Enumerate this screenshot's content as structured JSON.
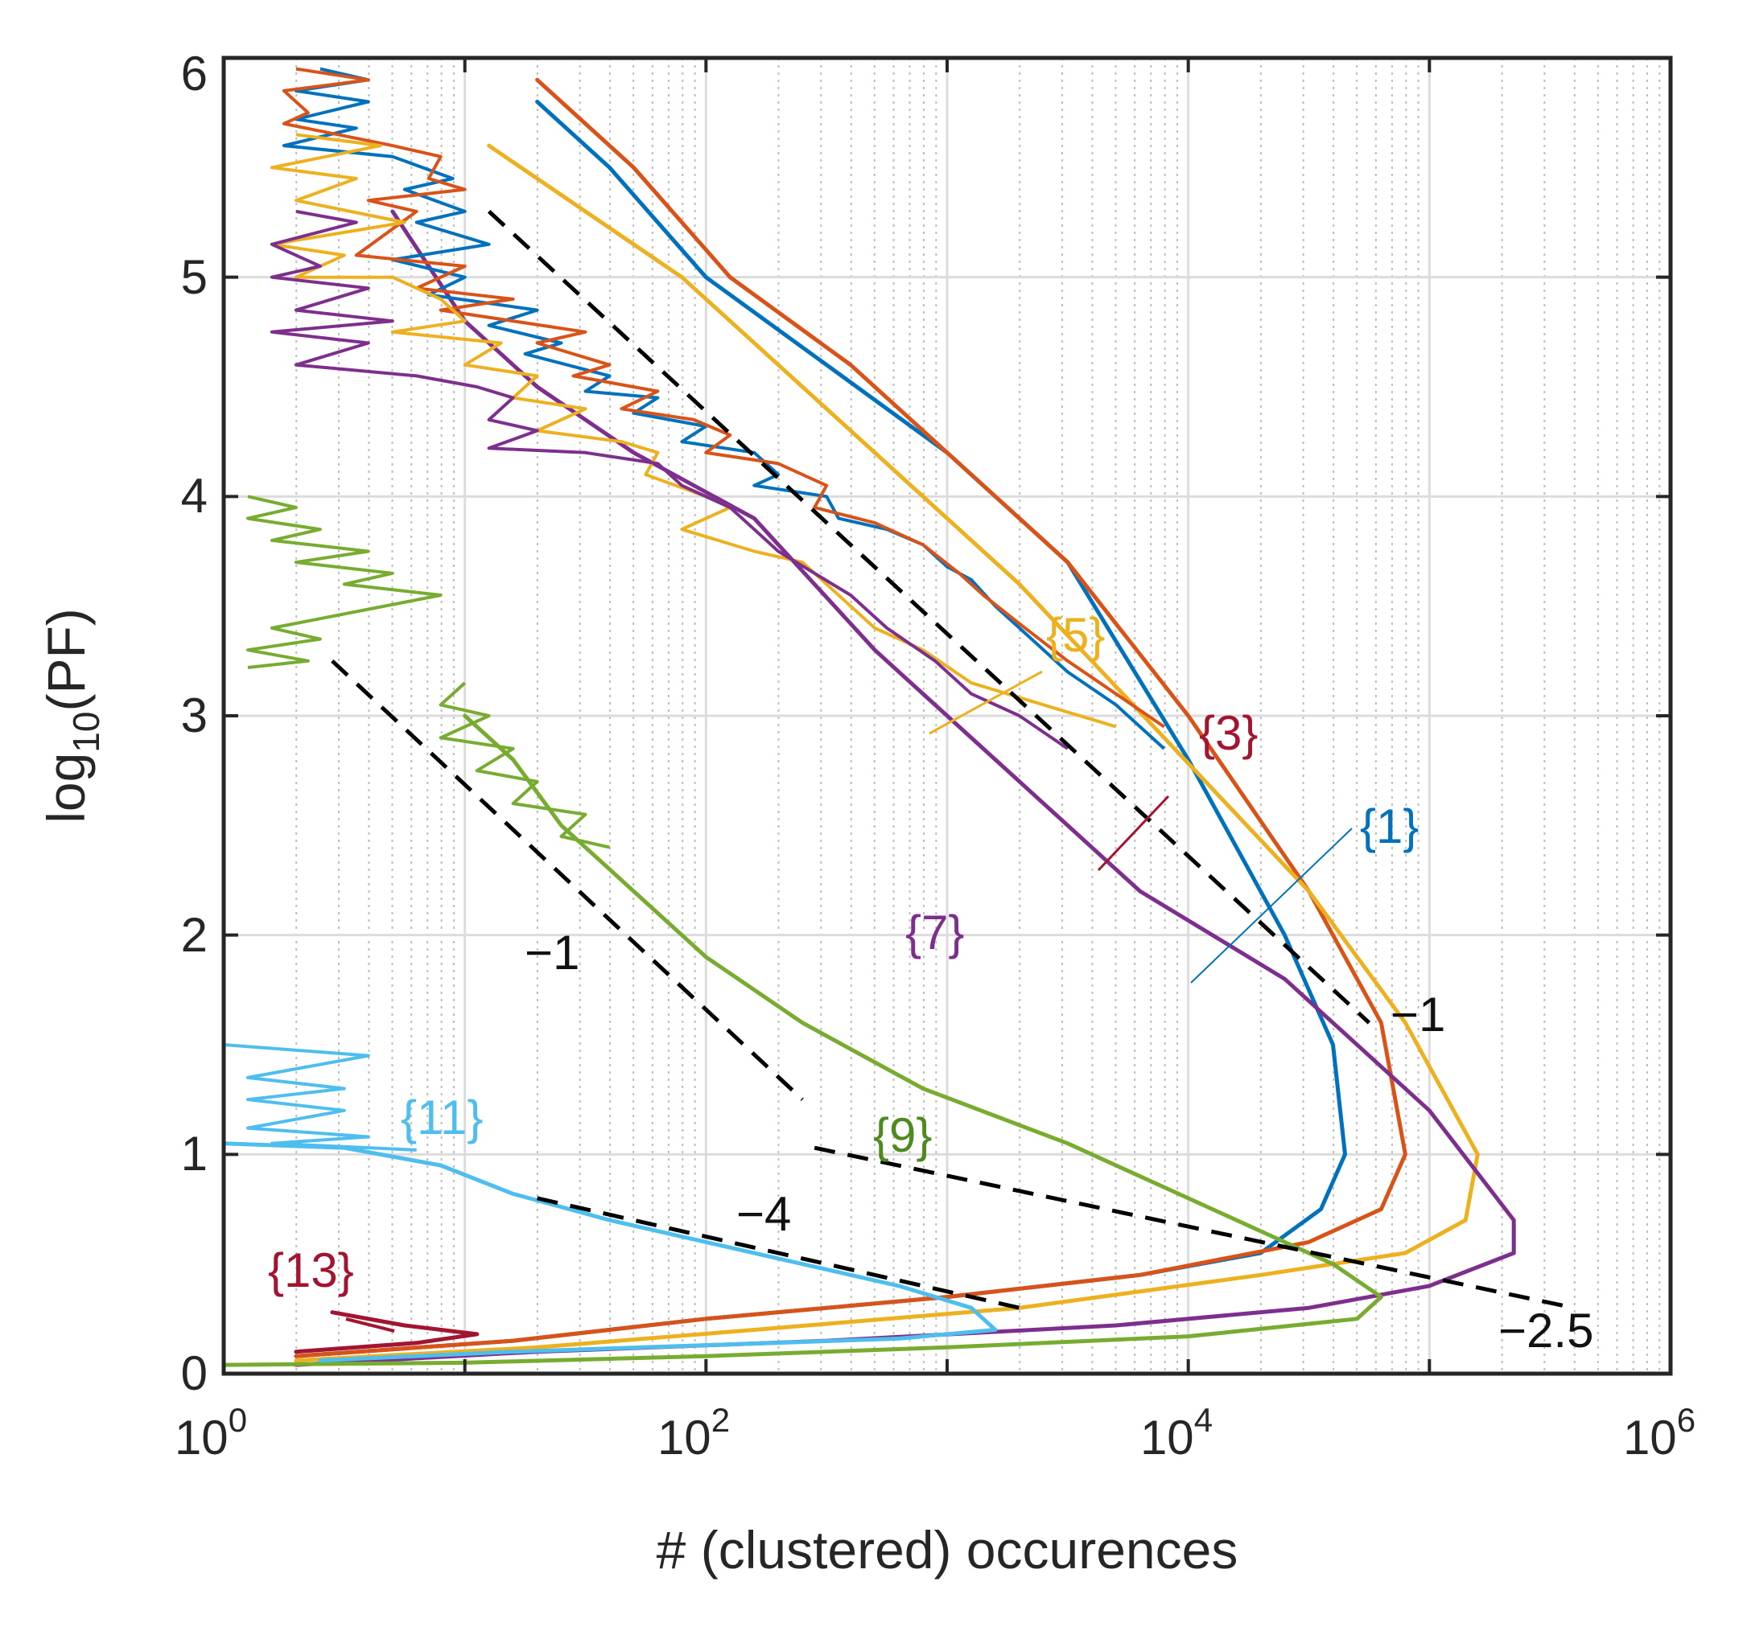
{
  "chart_data": {
    "type": "line",
    "title": "",
    "xlabel": "# (clustered) occurences",
    "ylabel_main": "log",
    "ylabel_sub": "10",
    "ylabel_tail": "(PF)",
    "x_scale": "log",
    "xlim_exp": [
      0,
      6
    ],
    "ylim": [
      0,
      6
    ],
    "x_ticks": [
      {
        "base": "10",
        "exp": "0"
      },
      {
        "base": "10",
        "exp": "2"
      },
      {
        "base": "10",
        "exp": "4"
      },
      {
        "base": "10",
        "exp": "6"
      }
    ],
    "y_ticks": [
      "0",
      "1",
      "2",
      "3",
      "4",
      "5",
      "6"
    ],
    "grid": true,
    "series": [
      {
        "name": "{1}",
        "color": "#0072BD",
        "points": [
          [
            1.3,
            5.8
          ],
          [
            1.6,
            5.5
          ],
          [
            2.0,
            5.0
          ],
          [
            2.5,
            4.6
          ],
          [
            3.0,
            4.2
          ],
          [
            3.5,
            3.7
          ],
          [
            4.0,
            2.8
          ],
          [
            4.4,
            2.0
          ],
          [
            4.6,
            1.5
          ],
          [
            4.65,
            1.0
          ],
          [
            4.55,
            0.75
          ],
          [
            4.3,
            0.55
          ],
          [
            3.8,
            0.45
          ],
          [
            3.0,
            0.35
          ],
          [
            2.0,
            0.25
          ],
          [
            1.2,
            0.15
          ],
          [
            0.3,
            0.08
          ]
        ]
      },
      {
        "name": "{3}",
        "color": "#D95319",
        "points": [
          [
            1.3,
            5.9
          ],
          [
            1.7,
            5.5
          ],
          [
            2.1,
            5.0
          ],
          [
            2.6,
            4.6
          ],
          [
            3.0,
            4.2
          ],
          [
            3.5,
            3.7
          ],
          [
            4.0,
            3.0
          ],
          [
            4.5,
            2.2
          ],
          [
            4.8,
            1.6
          ],
          [
            4.9,
            1.0
          ],
          [
            4.8,
            0.75
          ],
          [
            4.5,
            0.6
          ],
          [
            3.8,
            0.45
          ],
          [
            3.0,
            0.35
          ],
          [
            2.0,
            0.25
          ],
          [
            1.2,
            0.15
          ],
          [
            0.3,
            0.08
          ]
        ]
      },
      {
        "name": "{5}",
        "color": "#EDB120",
        "points": [
          [
            1.1,
            5.6
          ],
          [
            1.5,
            5.3
          ],
          [
            1.9,
            5.0
          ],
          [
            2.3,
            4.6
          ],
          [
            2.8,
            4.1
          ],
          [
            3.3,
            3.6
          ],
          [
            3.9,
            2.9
          ],
          [
            4.5,
            2.2
          ],
          [
            4.9,
            1.6
          ],
          [
            5.2,
            1.0
          ],
          [
            5.15,
            0.7
          ],
          [
            4.9,
            0.55
          ],
          [
            4.3,
            0.45
          ],
          [
            3.3,
            0.3
          ],
          [
            2.2,
            0.2
          ],
          [
            1.3,
            0.12
          ],
          [
            0.3,
            0.06
          ]
        ]
      },
      {
        "name": "{7}",
        "color": "#7E2F8E",
        "points": [
          [
            0.7,
            5.3
          ],
          [
            1.0,
            4.8
          ],
          [
            1.3,
            4.5
          ],
          [
            1.7,
            4.2
          ],
          [
            2.2,
            3.9
          ],
          [
            2.7,
            3.3
          ],
          [
            3.2,
            2.8
          ],
          [
            3.8,
            2.2
          ],
          [
            4.4,
            1.8
          ],
          [
            5.0,
            1.2
          ],
          [
            5.35,
            0.7
          ],
          [
            5.35,
            0.55
          ],
          [
            5.0,
            0.4
          ],
          [
            4.5,
            0.3
          ],
          [
            3.7,
            0.22
          ],
          [
            2.5,
            0.15
          ],
          [
            1.3,
            0.1
          ],
          [
            0.3,
            0.04
          ]
        ]
      },
      {
        "name": "{9}",
        "color": "#77AC30",
        "points": [
          [
            1.0,
            3.0
          ],
          [
            1.2,
            2.8
          ],
          [
            1.4,
            2.5
          ],
          [
            1.7,
            2.2
          ],
          [
            2.0,
            1.9
          ],
          [
            2.4,
            1.6
          ],
          [
            2.9,
            1.3
          ],
          [
            3.5,
            1.05
          ],
          [
            4.1,
            0.75
          ],
          [
            4.6,
            0.5
          ],
          [
            4.8,
            0.35
          ],
          [
            4.7,
            0.25
          ],
          [
            4.0,
            0.17
          ],
          [
            3.0,
            0.12
          ],
          [
            2.0,
            0.08
          ],
          [
            1.0,
            0.05
          ],
          [
            0.0,
            0.04
          ]
        ]
      },
      {
        "name": "{11}",
        "color": "#4DBEEE",
        "points": [
          [
            0.0,
            1.05
          ],
          [
            0.5,
            1.03
          ],
          [
            0.9,
            0.95
          ],
          [
            1.2,
            0.82
          ],
          [
            1.6,
            0.7
          ],
          [
            2.0,
            0.6
          ],
          [
            2.4,
            0.5
          ],
          [
            2.8,
            0.4
          ],
          [
            3.1,
            0.3
          ],
          [
            3.2,
            0.2
          ],
          [
            2.8,
            0.16
          ],
          [
            2.0,
            0.13
          ],
          [
            1.2,
            0.1
          ],
          [
            0.4,
            0.06
          ]
        ]
      },
      {
        "name": "{13}",
        "color": "#A2142F",
        "points": [
          [
            0.45,
            0.28
          ],
          [
            0.75,
            0.22
          ],
          [
            1.05,
            0.18
          ],
          [
            0.8,
            0.14
          ],
          [
            0.3,
            0.1
          ]
        ]
      }
    ],
    "noise_segments": [
      {
        "series": 0,
        "points": [
          [
            0.4,
            5.95
          ],
          [
            0.6,
            5.9
          ],
          [
            0.3,
            5.85
          ],
          [
            0.6,
            5.8
          ],
          [
            0.3,
            5.72
          ],
          [
            0.55,
            5.68
          ],
          [
            0.25,
            5.6
          ],
          [
            0.7,
            5.55
          ],
          [
            0.95,
            5.45
          ],
          [
            0.75,
            5.4
          ],
          [
            1.0,
            5.3
          ],
          [
            0.8,
            5.25
          ],
          [
            1.1,
            5.15
          ],
          [
            0.7,
            5.08
          ],
          [
            1.0,
            5.0
          ],
          [
            0.85,
            4.92
          ],
          [
            1.3,
            4.85
          ],
          [
            1.1,
            4.78
          ],
          [
            1.4,
            4.7
          ],
          [
            1.25,
            4.65
          ],
          [
            1.6,
            4.55
          ],
          [
            1.5,
            4.48
          ],
          [
            1.8,
            4.45
          ],
          [
            1.7,
            4.38
          ],
          [
            2.0,
            4.32
          ],
          [
            1.9,
            4.25
          ],
          [
            2.2,
            4.2
          ],
          [
            2.3,
            4.1
          ],
          [
            2.2,
            4.05
          ],
          [
            2.5,
            4.0
          ],
          [
            2.55,
            3.9
          ],
          [
            2.75,
            3.85
          ],
          [
            2.9,
            3.78
          ],
          [
            3.0,
            3.68
          ],
          [
            3.1,
            3.62
          ],
          [
            3.2,
            3.5
          ],
          [
            3.3,
            3.4
          ],
          [
            3.5,
            3.2
          ],
          [
            3.7,
            3.05
          ],
          [
            3.9,
            2.85
          ]
        ]
      },
      {
        "series": 1,
        "points": [
          [
            0.3,
            5.95
          ],
          [
            0.6,
            5.9
          ],
          [
            0.25,
            5.85
          ],
          [
            0.35,
            5.75
          ],
          [
            0.25,
            5.7
          ],
          [
            0.7,
            5.6
          ],
          [
            0.9,
            5.55
          ],
          [
            0.85,
            5.45
          ],
          [
            1.0,
            5.4
          ],
          [
            0.6,
            5.35
          ],
          [
            0.8,
            5.3
          ],
          [
            0.55,
            5.1
          ],
          [
            1.0,
            5.05
          ],
          [
            0.8,
            4.95
          ],
          [
            1.2,
            4.9
          ],
          [
            0.9,
            4.85
          ],
          [
            1.5,
            4.75
          ],
          [
            1.3,
            4.7
          ],
          [
            1.6,
            4.6
          ],
          [
            1.45,
            4.55
          ],
          [
            1.8,
            4.48
          ],
          [
            1.65,
            4.4
          ],
          [
            1.95,
            4.35
          ],
          [
            2.1,
            4.28
          ],
          [
            2.0,
            4.2
          ],
          [
            2.3,
            4.15
          ],
          [
            2.5,
            4.05
          ],
          [
            2.45,
            3.95
          ],
          [
            2.7,
            3.88
          ],
          [
            2.9,
            3.78
          ],
          [
            3.05,
            3.65
          ],
          [
            3.15,
            3.55
          ],
          [
            3.3,
            3.42
          ],
          [
            3.5,
            3.25
          ],
          [
            3.7,
            3.1
          ],
          [
            3.9,
            2.95
          ]
        ]
      },
      {
        "series": 2,
        "points": [
          [
            0.3,
            5.65
          ],
          [
            0.65,
            5.6
          ],
          [
            0.2,
            5.5
          ],
          [
            0.55,
            5.45
          ],
          [
            0.3,
            5.35
          ],
          [
            0.75,
            5.25
          ],
          [
            0.2,
            5.15
          ],
          [
            0.5,
            5.1
          ],
          [
            0.3,
            5.0
          ],
          [
            0.7,
            5.0
          ],
          [
            0.9,
            4.9
          ],
          [
            1.0,
            4.8
          ],
          [
            0.7,
            4.75
          ],
          [
            1.15,
            4.7
          ],
          [
            1.0,
            4.6
          ],
          [
            1.3,
            4.55
          ],
          [
            1.2,
            4.45
          ],
          [
            1.5,
            4.4
          ],
          [
            1.3,
            4.3
          ],
          [
            1.65,
            4.25
          ],
          [
            1.8,
            4.2
          ],
          [
            1.75,
            4.1
          ],
          [
            2.0,
            4.0
          ],
          [
            2.1,
            3.95
          ],
          [
            1.9,
            3.85
          ],
          [
            2.2,
            3.75
          ],
          [
            2.4,
            3.7
          ],
          [
            2.5,
            3.6
          ],
          [
            2.6,
            3.5
          ],
          [
            2.7,
            3.4
          ],
          [
            2.9,
            3.3
          ],
          [
            3.1,
            3.15
          ],
          [
            3.4,
            3.05
          ],
          [
            3.7,
            2.95
          ]
        ]
      },
      {
        "series": 3,
        "points": [
          [
            0.3,
            5.3
          ],
          [
            0.55,
            5.25
          ],
          [
            0.2,
            5.15
          ],
          [
            0.4,
            5.05
          ],
          [
            0.2,
            5.0
          ],
          [
            0.6,
            4.95
          ],
          [
            0.3,
            4.85
          ],
          [
            0.7,
            4.8
          ],
          [
            0.2,
            4.75
          ],
          [
            0.6,
            4.7
          ],
          [
            0.3,
            4.6
          ],
          [
            0.8,
            4.55
          ],
          [
            1.05,
            4.5
          ],
          [
            1.2,
            4.45
          ],
          [
            1.1,
            4.35
          ],
          [
            1.3,
            4.3
          ],
          [
            1.1,
            4.22
          ],
          [
            1.5,
            4.2
          ],
          [
            1.8,
            4.15
          ],
          [
            1.9,
            4.05
          ],
          [
            2.1,
            3.95
          ],
          [
            2.2,
            3.85
          ],
          [
            2.3,
            3.75
          ],
          [
            2.45,
            3.65
          ],
          [
            2.6,
            3.55
          ],
          [
            2.75,
            3.4
          ],
          [
            2.95,
            3.25
          ],
          [
            3.1,
            3.1
          ],
          [
            3.3,
            3.0
          ],
          [
            3.5,
            2.85
          ]
        ]
      },
      {
        "series": 4,
        "points": [
          [
            0.1,
            4.0
          ],
          [
            0.3,
            3.95
          ],
          [
            0.1,
            3.9
          ],
          [
            0.4,
            3.85
          ],
          [
            0.2,
            3.8
          ],
          [
            0.6,
            3.75
          ],
          [
            0.3,
            3.7
          ],
          [
            0.7,
            3.65
          ],
          [
            0.5,
            3.6
          ],
          [
            0.9,
            3.55
          ],
          [
            0.2,
            3.4
          ],
          [
            0.4,
            3.35
          ],
          [
            0.1,
            3.3
          ],
          [
            0.35,
            3.25
          ],
          [
            0.1,
            3.22
          ]
        ]
      },
      {
        "series": 4,
        "points": [
          [
            1.0,
            3.15
          ],
          [
            0.9,
            3.05
          ],
          [
            1.1,
            3.0
          ],
          [
            0.9,
            2.9
          ],
          [
            1.2,
            2.85
          ],
          [
            1.05,
            2.75
          ],
          [
            1.3,
            2.7
          ],
          [
            1.2,
            2.6
          ],
          [
            1.5,
            2.55
          ],
          [
            1.4,
            2.45
          ],
          [
            1.6,
            2.4
          ]
        ]
      },
      {
        "series": 5,
        "points": [
          [
            0.0,
            1.5
          ],
          [
            0.6,
            1.45
          ],
          [
            0.1,
            1.35
          ],
          [
            0.5,
            1.3
          ],
          [
            0.1,
            1.25
          ],
          [
            0.5,
            1.2
          ],
          [
            0.1,
            1.12
          ],
          [
            0.6,
            1.08
          ],
          [
            0.2,
            1.05
          ],
          [
            0.8,
            1.02
          ]
        ]
      }
    ],
    "guides": [
      {
        "from": [
          1.1,
          5.3
        ],
        "to": [
          4.75,
          1.6
        ]
      },
      {
        "from": [
          0.45,
          3.25
        ],
        "to": [
          2.4,
          1.25
        ]
      },
      {
        "from": [
          2.45,
          1.03
        ],
        "to": [
          5.6,
          0.3
        ]
      },
      {
        "from": [
          1.3,
          0.8
        ],
        "to": [
          3.3,
          0.3
        ]
      }
    ],
    "slope_labels": [
      "−1",
      "−1",
      "−2.5",
      "−4"
    ],
    "annotations": [
      {
        "text": "{5}",
        "color": "#EDB120"
      },
      {
        "text": "{3}",
        "color": "#A2142F"
      },
      {
        "text": "{1}",
        "color": "#0072BD"
      },
      {
        "text": "{7}",
        "color": "#7E2F8E"
      },
      {
        "text": "{9}",
        "color": "#4E8A1E"
      },
      {
        "text": "{11}",
        "color": "#4DBEEE"
      },
      {
        "text": "{13}",
        "color": "#A2142F"
      }
    ]
  }
}
